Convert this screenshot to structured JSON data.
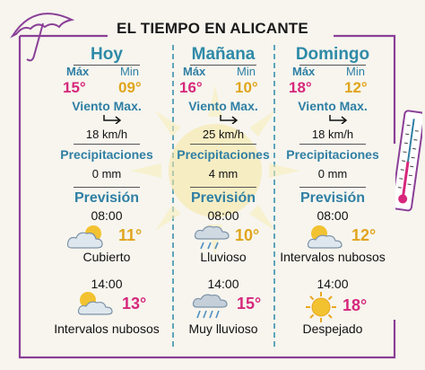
{
  "title": "EL TIEMPO EN ALICANTE",
  "labels": {
    "max": "Máx",
    "min": "Min",
    "wind": "Viento Max.",
    "precip": "Precipitaciones",
    "forecast": "Previsión"
  },
  "days": [
    {
      "name": "Hoy",
      "max": "15°",
      "min": "09°",
      "wind": "18 km/h",
      "precip": "0 mm",
      "slots": [
        {
          "time": "08:00",
          "temp": "11°",
          "desc": "Cubierto",
          "icon": "cloud-sun-icon",
          "temp_color": "#e0a51d"
        },
        {
          "time": "14:00",
          "temp": "13°",
          "desc": "Intervalos nubosos",
          "icon": "cloud-sun-icon",
          "temp_color": "#d6287c"
        }
      ]
    },
    {
      "name": "Mañana",
      "max": "16°",
      "min": "10°",
      "wind": "25 km/h",
      "precip": "4 mm",
      "slots": [
        {
          "time": "08:00",
          "temp": "10°",
          "desc": "Lluvioso",
          "icon": "rain-icon",
          "temp_color": "#e0a51d"
        },
        {
          "time": "14:00",
          "temp": "15°",
          "desc": "Muy lluvioso",
          "icon": "rain-icon",
          "temp_color": "#d6287c"
        }
      ]
    },
    {
      "name": "Domingo",
      "max": "18°",
      "min": "12°",
      "wind": "18 km/h",
      "precip": "0 mm",
      "slots": [
        {
          "time": "08:00",
          "temp": "12°",
          "desc": "Intervalos nubosos",
          "icon": "cloud-sun-icon",
          "temp_color": "#e0a51d"
        },
        {
          "time": "14:00",
          "temp": "18°",
          "desc": "Despejado",
          "icon": "sun-icon",
          "temp_color": "#d6287c"
        }
      ]
    }
  ],
  "decorations": [
    "umbrella-icon",
    "thermometer-icon",
    "sun-background-icon"
  ],
  "colors": {
    "accent_blue": "#2f7fa4",
    "max_pink": "#d6287c",
    "min_yellow": "#e0a51d",
    "frame_purple": "#8a3f97"
  }
}
